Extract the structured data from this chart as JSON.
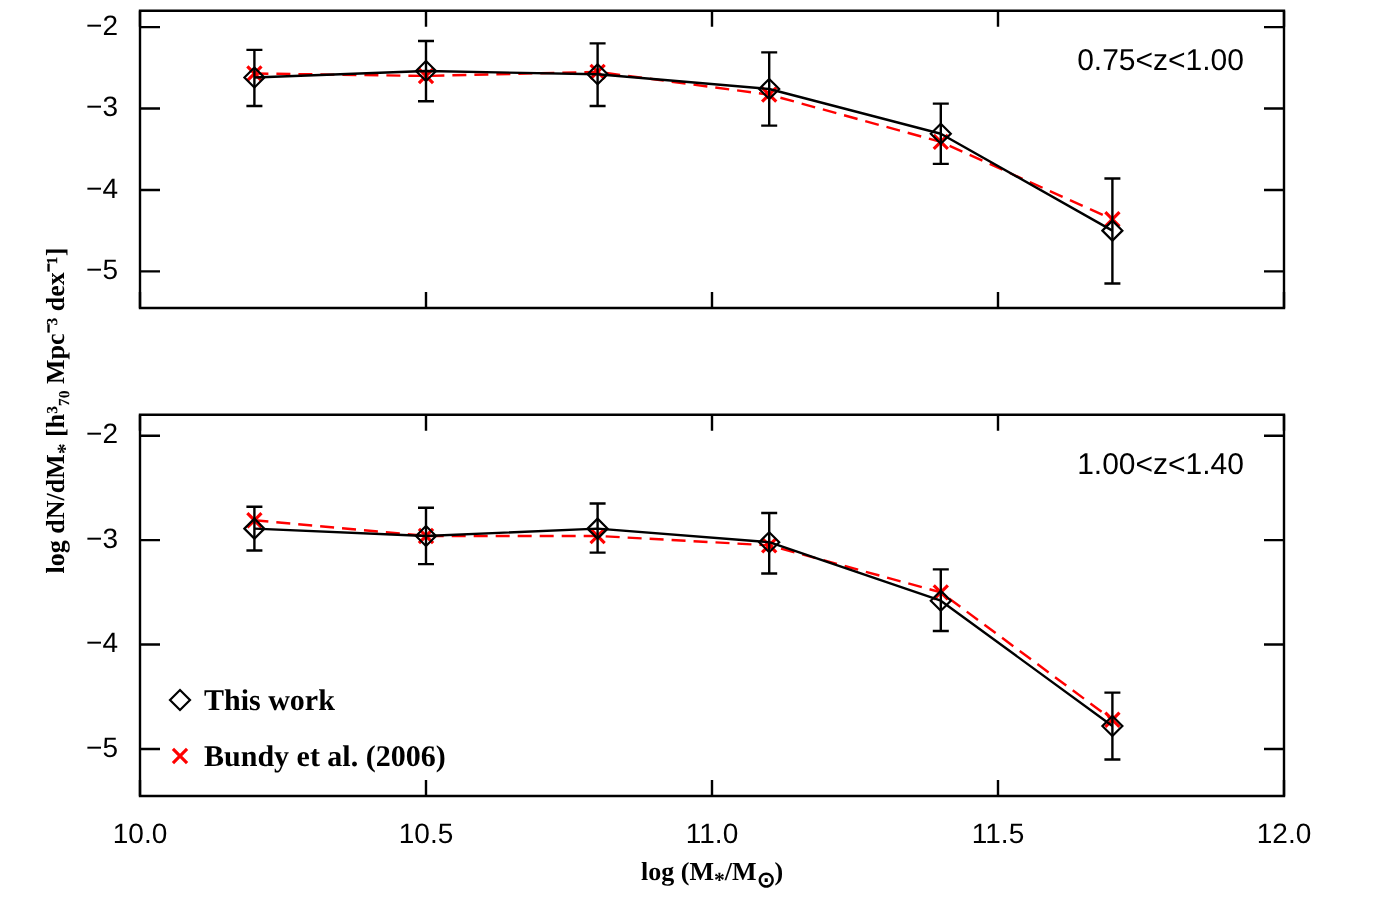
{
  "chart_data": [
    {
      "type": "line",
      "ylabel": "log dN/dM$_{*}$ [h³₇₀ Mpc⁻³ dex⁻¹]",
      "annotations": [
        "0.75<z<1.00"
      ],
      "x": [
        10.2,
        10.5,
        10.8,
        11.1,
        11.4,
        11.7
      ],
      "xlim": [
        10,
        12
      ],
      "xticks": [
        {
          "value": 10,
          "label": null
        },
        {
          "value": 10.5,
          "label": null
        },
        {
          "value": 11,
          "label": null
        },
        {
          "value": 11.5,
          "label": null
        },
        {
          "value": 12,
          "label": null
        }
      ],
      "ylim": [
        -5.45,
        -1.8
      ],
      "yticks": [
        {
          "value": -5,
          "label": "−5"
        },
        {
          "value": -4,
          "label": "−4"
        },
        {
          "value": -3,
          "label": "−3"
        },
        {
          "value": -2,
          "label": "−2"
        }
      ],
      "tick_labels": "y",
      "grid": false,
      "legend": false,
      "series": [
        {
          "color": "#000000",
          "marker": "diamond",
          "line_style": "solid",
          "values": [
            -2.62,
            -2.54,
            -2.58,
            -2.76,
            -3.31,
            -4.5
          ],
          "errors": [
            [
              -2.97,
              -2.28
            ],
            [
              -2.91,
              -2.17
            ],
            [
              -2.97,
              -2.2
            ],
            [
              -3.21,
              -2.31
            ],
            [
              -3.68,
              -2.94
            ],
            [
              -5.15,
              -3.86
            ]
          ]
        },
        {
          "color": "#ff0000",
          "marker": "cross",
          "line_style": "dashed",
          "values": [
            -2.57,
            -2.6,
            -2.55,
            -2.83,
            -3.41,
            -4.36
          ]
        }
      ]
    },
    {
      "type": "line",
      "xlabel": "log (M$_{*}$/M$_{⊙}$)",
      "annotations": [
        "1.00<z<1.40"
      ],
      "x": [
        10.2,
        10.5,
        10.8,
        11.1,
        11.4,
        11.7
      ],
      "xlim": [
        10,
        12
      ],
      "xticks": [
        {
          "value": 10,
          "label": "10.0"
        },
        10.5,
        {
          "value": 11,
          "label": "11.0"
        },
        11.5,
        {
          "value": 12,
          "label": "12.0"
        }
      ],
      "ylim": [
        -5.45,
        -1.8
      ],
      "yticks": [
        {
          "value": -5,
          "label": "−5"
        },
        {
          "value": -4,
          "label": "−4"
        },
        {
          "value": -3,
          "label": "−3"
        },
        {
          "value": -2,
          "label": "−2"
        }
      ],
      "grid": false,
      "legend": "bottom left",
      "series": [
        {
          "name": "This work",
          "color": "#000000",
          "marker": "diamond",
          "line_style": "solid",
          "values": [
            -2.89,
            -2.96,
            -2.89,
            -3.02,
            -3.58,
            -4.78
          ],
          "errors": [
            [
              -3.1,
              -2.68
            ],
            [
              -3.23,
              -2.69
            ],
            [
              -3.12,
              -2.65
            ],
            [
              -3.32,
              -2.74
            ],
            [
              -3.87,
              -3.28
            ],
            [
              -5.1,
              -4.46
            ]
          ]
        },
        {
          "name": "Bundy et al. (2006)",
          "color": "#ff0000",
          "marker": "cross",
          "line_style": "dashed",
          "values": [
            -2.81,
            -2.96,
            -2.96,
            -3.05,
            -3.5,
            -4.72
          ]
        }
      ]
    }
  ]
}
